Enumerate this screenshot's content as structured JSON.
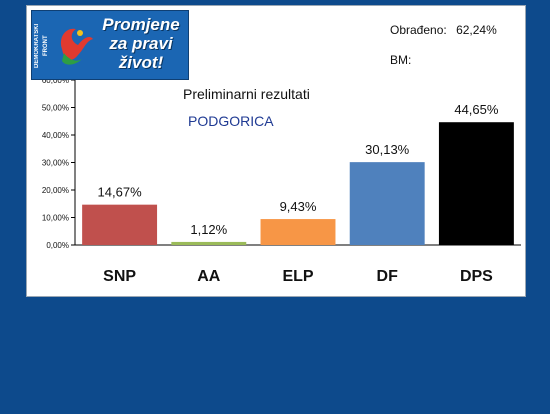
{
  "logo": {
    "brand": "DEMOKRATSKI FRONT",
    "slogan": [
      "Promjene",
      "za pravi",
      "život!"
    ]
  },
  "status": {
    "processed_label": "Obrađeno:",
    "processed_value": "62,24%",
    "bm_label": "BM:"
  },
  "colors": {
    "background": "#0d4a8c",
    "panel": "#ffffff"
  },
  "chart_data": {
    "type": "bar",
    "title": "Preliminarni rezultati",
    "subtitle": "PODGORICA",
    "categories": [
      "SNP",
      "AA",
      "ELP",
      "DF",
      "DPS"
    ],
    "values": [
      14.67,
      1.12,
      9.43,
      30.13,
      44.65
    ],
    "data_labels": [
      "14,67%",
      "1,12%",
      "9,43%",
      "30,13%",
      "44,65%"
    ],
    "colors": [
      "#c0504d",
      "#9bbb59",
      "#f79646",
      "#4f81bd",
      "#000000"
    ],
    "ylim": [
      0,
      60
    ],
    "yticks": [
      "0,00%",
      "10,00%",
      "20,00%",
      "30,00%",
      "40,00%",
      "50,00%",
      "60,00%"
    ],
    "grid": false,
    "legend": "none"
  }
}
